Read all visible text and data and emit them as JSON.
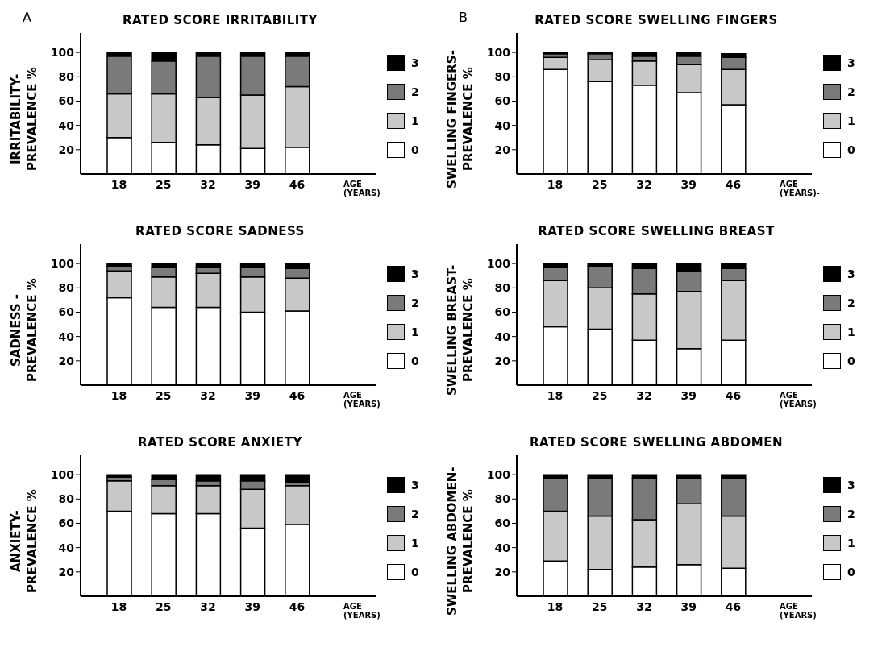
{
  "chart_data": [
    {
      "type": "bar",
      "stacked": true,
      "title": "RATED SCORE IRRITABILITY",
      "xlabel": "AGE\n(YEARS)",
      "ylabel": "IRRITABILITY-\nPREVALENCE %",
      "annotations": [
        "A"
      ],
      "legend": "right",
      "categories": [
        "18",
        "25",
        "32",
        "39",
        "46"
      ],
      "ylim": [
        0,
        116
      ],
      "yticks": [
        20,
        40,
        60,
        80,
        100
      ],
      "series": [
        {
          "name": "0",
          "color": "#ffffff",
          "values": [
            30,
            26,
            24,
            21,
            22
          ]
        },
        {
          "name": "1",
          "color": "#c8c8c8",
          "values": [
            36,
            40,
            39,
            44,
            50
          ]
        },
        {
          "name": "2",
          "color": "#7a7a7a",
          "values": [
            31,
            27,
            34,
            32,
            25
          ]
        },
        {
          "name": "3",
          "color": "#000000",
          "values": [
            3,
            7,
            3,
            3,
            3
          ]
        }
      ]
    },
    {
      "type": "bar",
      "stacked": true,
      "title": "RATED SCORE SWELLING FINGERS",
      "xlabel": "AGE\n(YEARS)-",
      "ylabel": "SWELLING FINGERS-\nPREVALENCE %",
      "annotations": [
        "B"
      ],
      "legend": "right",
      "categories": [
        "18",
        "25",
        "32",
        "39",
        "46"
      ],
      "ylim": [
        0,
        116
      ],
      "yticks": [
        20,
        40,
        60,
        80,
        100
      ],
      "series": [
        {
          "name": "0",
          "color": "#ffffff",
          "values": [
            86,
            76,
            73,
            67,
            57
          ]
        },
        {
          "name": "1",
          "color": "#c8c8c8",
          "values": [
            10,
            18,
            20,
            23,
            29
          ]
        },
        {
          "name": "2",
          "color": "#7a7a7a",
          "values": [
            3,
            5,
            4,
            7,
            10
          ]
        },
        {
          "name": "3",
          "color": "#000000",
          "values": [
            1,
            1,
            3,
            3,
            3
          ]
        }
      ]
    },
    {
      "type": "bar",
      "stacked": true,
      "title": "RATED SCORE SADNESS",
      "xlabel": "AGE\n(YEARS)",
      "ylabel": "SADNESS -\nPREVALENCE %",
      "legend": "right",
      "categories": [
        "18",
        "25",
        "32",
        "39",
        "46"
      ],
      "ylim": [
        0,
        116
      ],
      "yticks": [
        20,
        40,
        60,
        80,
        100
      ],
      "series": [
        {
          "name": "0",
          "color": "#ffffff",
          "values": [
            72,
            64,
            64,
            60,
            61
          ]
        },
        {
          "name": "1",
          "color": "#c8c8c8",
          "values": [
            22,
            25,
            28,
            29,
            27
          ]
        },
        {
          "name": "2",
          "color": "#7a7a7a",
          "values": [
            4,
            8,
            5,
            8,
            8
          ]
        },
        {
          "name": "3",
          "color": "#000000",
          "values": [
            2,
            3,
            3,
            3,
            4
          ]
        }
      ]
    },
    {
      "type": "bar",
      "stacked": true,
      "title": "RATED SCORE SWELLING BREAST",
      "xlabel": "AGE\n(YEARS)",
      "ylabel": "SWELLING BREAST-\nPREVALENCE %",
      "legend": "right",
      "categories": [
        "18",
        "25",
        "32",
        "39",
        "46"
      ],
      "ylim": [
        0,
        116
      ],
      "yticks": [
        20,
        40,
        60,
        80,
        100
      ],
      "series": [
        {
          "name": "0",
          "color": "#ffffff",
          "values": [
            48,
            46,
            37,
            30,
            37
          ]
        },
        {
          "name": "1",
          "color": "#c8c8c8",
          "values": [
            38,
            34,
            38,
            47,
            49
          ]
        },
        {
          "name": "2",
          "color": "#7a7a7a",
          "values": [
            11,
            18,
            21,
            17,
            10
          ]
        },
        {
          "name": "3",
          "color": "#000000",
          "values": [
            3,
            2,
            4,
            6,
            4
          ]
        }
      ]
    },
    {
      "type": "bar",
      "stacked": true,
      "title": "RATED SCORE ANXIETY",
      "xlabel": "AGE\n(YEARS)",
      "ylabel": "ANXIETY-\nPREVALENCE %",
      "legend": "right",
      "categories": [
        "18",
        "25",
        "32",
        "39",
        "46"
      ],
      "ylim": [
        0,
        116
      ],
      "yticks": [
        20,
        40,
        60,
        80,
        100
      ],
      "series": [
        {
          "name": "0",
          "color": "#ffffff",
          "values": [
            70,
            68,
            68,
            56,
            59
          ]
        },
        {
          "name": "1",
          "color": "#c8c8c8",
          "values": [
            25,
            23,
            23,
            32,
            32
          ]
        },
        {
          "name": "2",
          "color": "#7a7a7a",
          "values": [
            3,
            5,
            4,
            7,
            3
          ]
        },
        {
          "name": "3",
          "color": "#000000",
          "values": [
            2,
            4,
            5,
            5,
            6
          ]
        }
      ]
    },
    {
      "type": "bar",
      "stacked": true,
      "title": "RATED SCORE SWELLING ABDOMEN",
      "xlabel": "AGE\n(YEARS)",
      "ylabel": "SWELLING ABDOMEN-\nPREVALENCE %",
      "legend": "right",
      "categories": [
        "18",
        "25",
        "32",
        "39",
        "46"
      ],
      "ylim": [
        0,
        116
      ],
      "yticks": [
        20,
        40,
        60,
        80,
        100
      ],
      "series": [
        {
          "name": "0",
          "color": "#ffffff",
          "values": [
            29,
            22,
            24,
            26,
            23
          ]
        },
        {
          "name": "1",
          "color": "#c8c8c8",
          "values": [
            41,
            44,
            39,
            50,
            43
          ]
        },
        {
          "name": "2",
          "color": "#7a7a7a",
          "values": [
            27,
            31,
            34,
            21,
            31
          ]
        },
        {
          "name": "3",
          "color": "#000000",
          "values": [
            3,
            3,
            3,
            3,
            3
          ]
        }
      ]
    }
  ]
}
